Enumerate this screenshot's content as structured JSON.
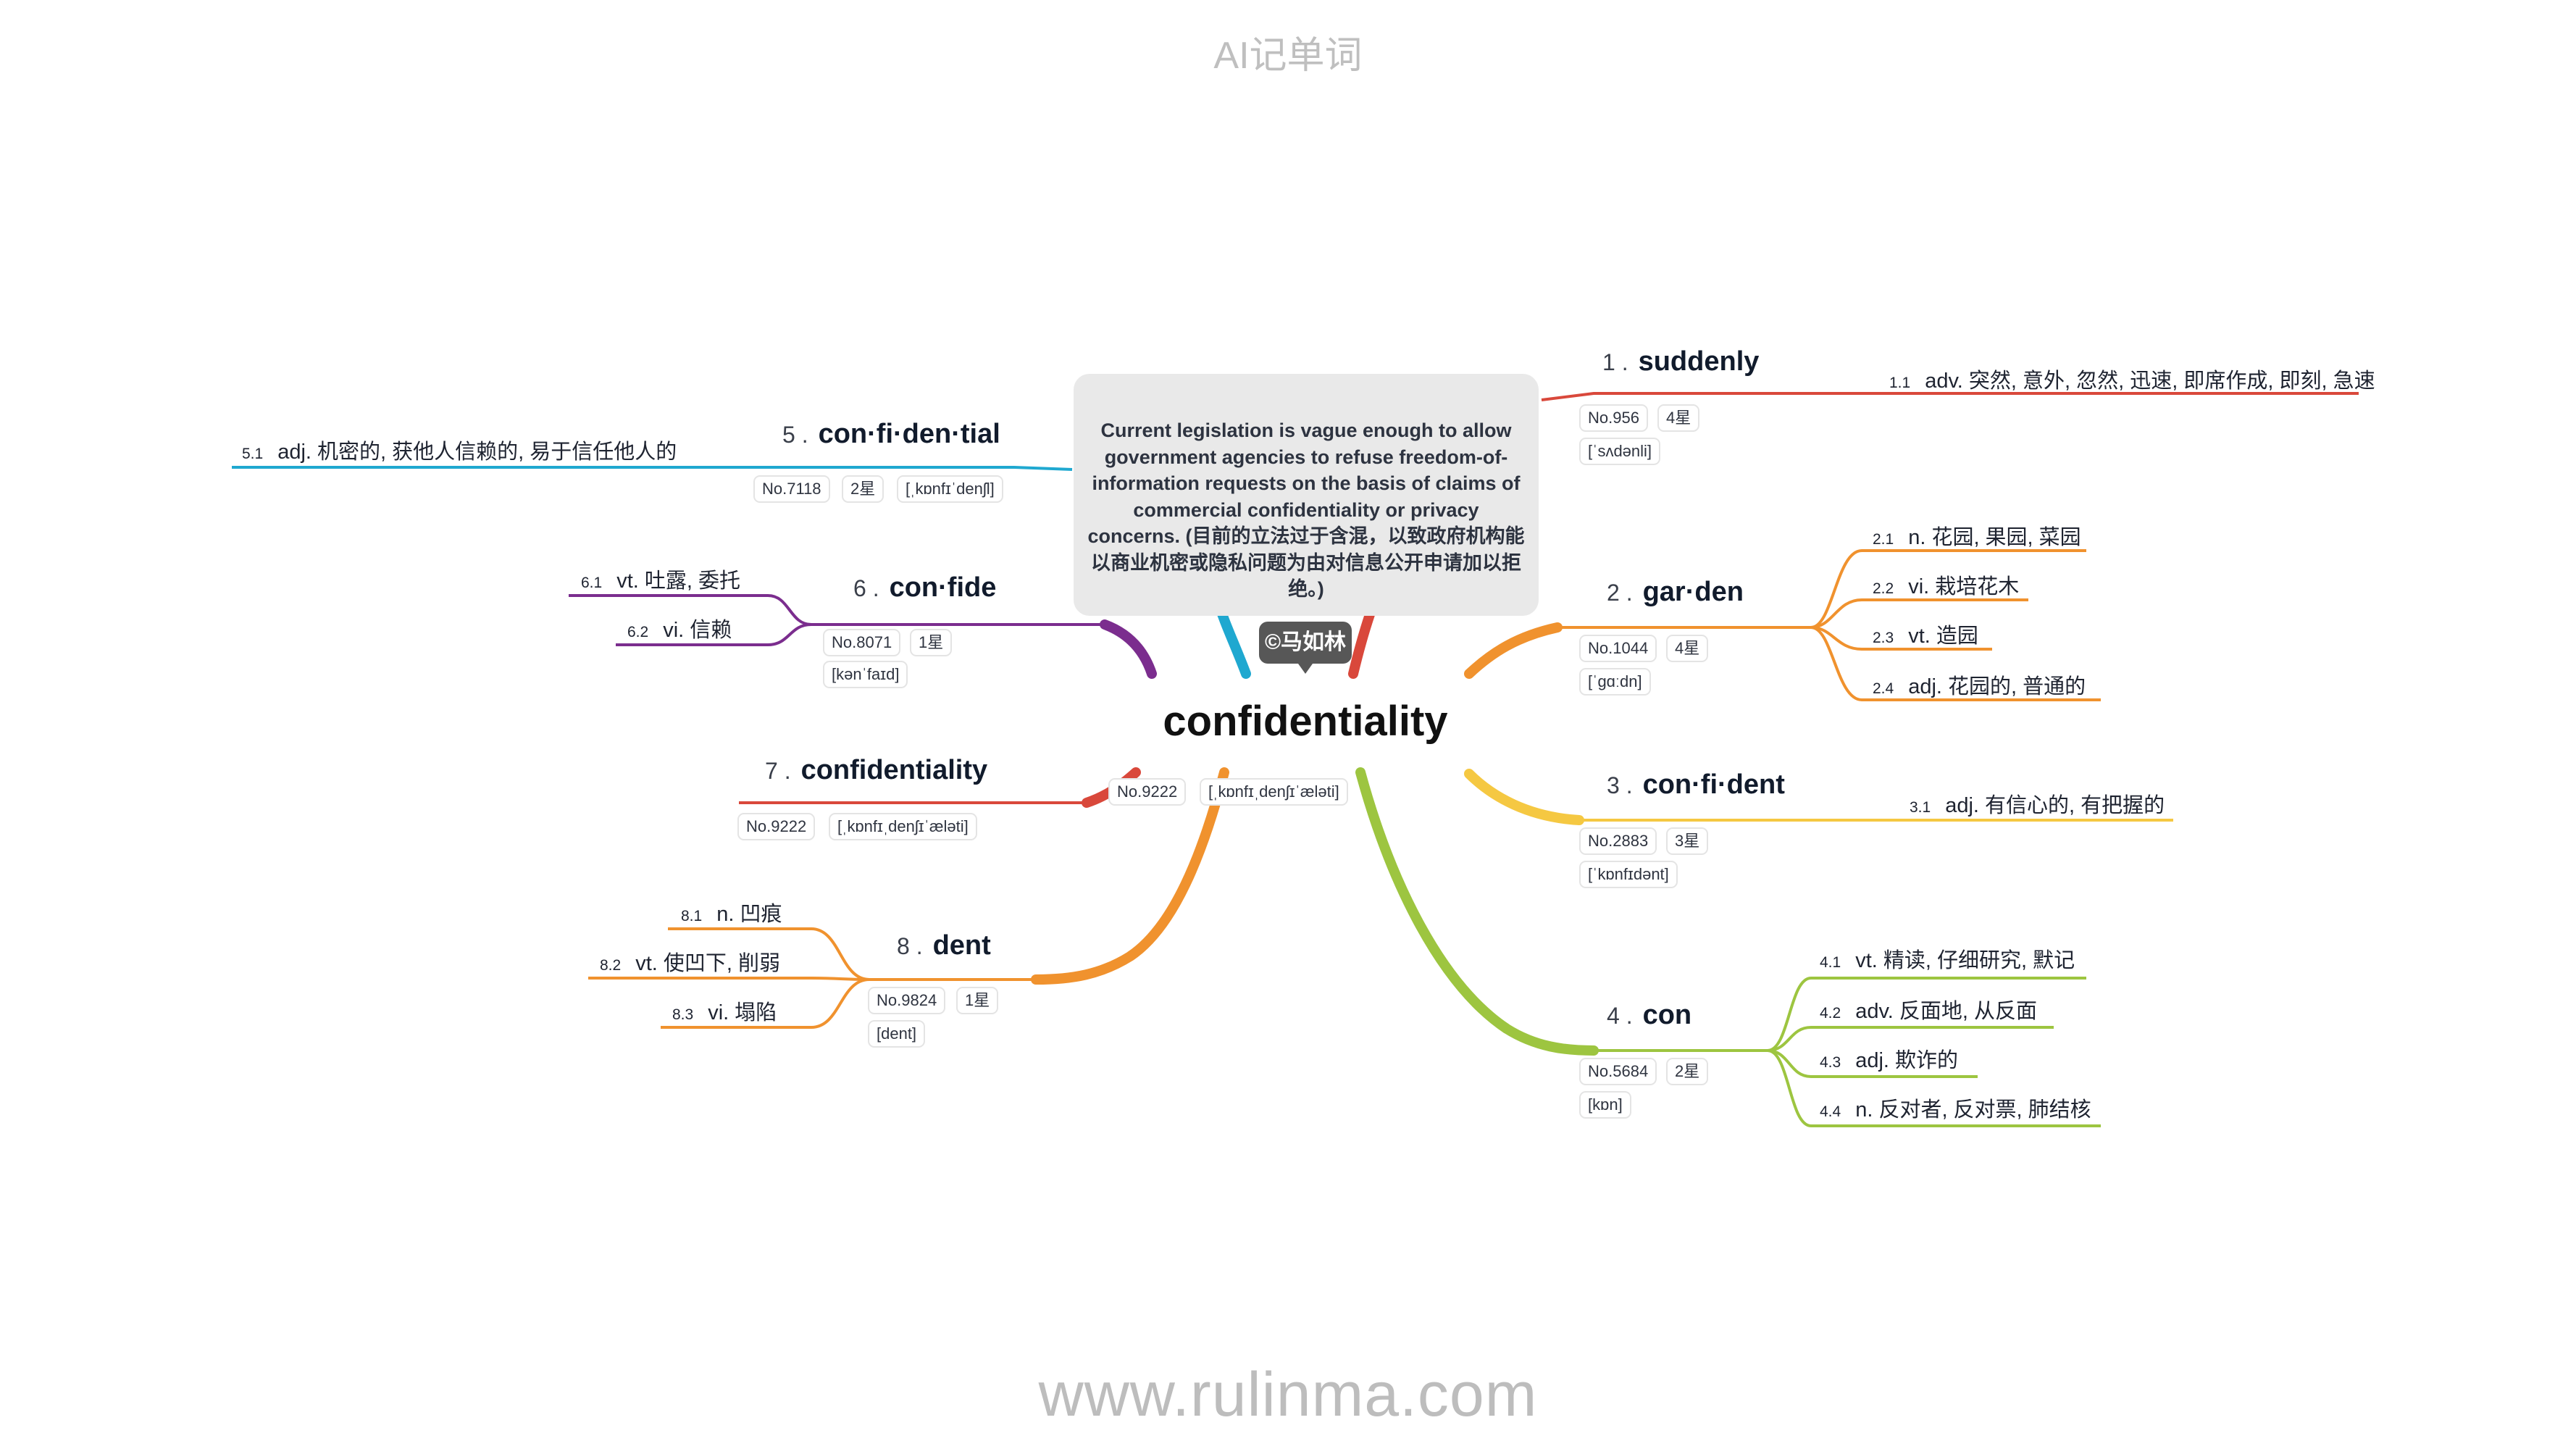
{
  "header": "AI记单词",
  "footer": "www.rulinma.com",
  "note": "Current legislation is vague enough to allow government agencies to refuse freedom-of-information requests on the basis of claims of commercial confidentiality or privacy concerns. (目前的立法过于含混，以致政府机构能以商业机密或隐私问题为由对信息公开申请加以拒绝。)",
  "credit": "©马如林",
  "central": {
    "word": "confidentiality",
    "no": "No.9222",
    "phonetic": "[ˌkɒnfɪˌdenʃɪˈæləti]"
  },
  "colors": {
    "b1": "#d9483b",
    "b2": "#f0922e",
    "b3": "#f5c842",
    "b4": "#9dc540",
    "b5": "#1fa8d0",
    "b6": "#7b2d8e",
    "b7": "#d9483b",
    "b8": "#f0922e"
  },
  "branches": [
    {
      "num": "1 .",
      "word": "suddenly",
      "no": "No.956",
      "stars": "4星",
      "phonetic": "[ˈsʌdənli]",
      "defs": [
        {
          "n": "1.1",
          "t": "adv. 突然, 意外, 忽然, 迅速, 即席作成, 即刻, 急速"
        }
      ]
    },
    {
      "num": "2 .",
      "word": "gar·den",
      "no": "No.1044",
      "stars": "4星",
      "phonetic": "[ˈɡɑːdn]",
      "defs": [
        {
          "n": "2.1",
          "t": "n. 花园, 果园, 菜园"
        },
        {
          "n": "2.2",
          "t": "vi. 栽培花木"
        },
        {
          "n": "2.3",
          "t": "vt. 造园"
        },
        {
          "n": "2.4",
          "t": "adj. 花园的, 普通的"
        }
      ]
    },
    {
      "num": "3 .",
      "word": "con·fi·dent",
      "no": "No.2883",
      "stars": "3星",
      "phonetic": "[ˈkɒnfɪdənt]",
      "defs": [
        {
          "n": "3.1",
          "t": "adj. 有信心的, 有把握的"
        }
      ]
    },
    {
      "num": "4 .",
      "word": "con",
      "no": "No.5684",
      "stars": "2星",
      "phonetic": "[kɒn]",
      "defs": [
        {
          "n": "4.1",
          "t": "vt. 精读, 仔细研究, 默记"
        },
        {
          "n": "4.2",
          "t": "adv. 反面地, 从反面"
        },
        {
          "n": "4.3",
          "t": "adj. 欺诈的"
        },
        {
          "n": "4.4",
          "t": "n. 反对者, 反对票, 肺结核"
        }
      ]
    },
    {
      "num": "5 .",
      "word": "con·fi·den·tial",
      "no": "No.7118",
      "stars": "2星",
      "phonetic": "[ˌkɒnfɪˈdenʃl]",
      "defs": [
        {
          "n": "5.1",
          "t": "adj. 机密的, 获他人信赖的, 易于信任他人的"
        }
      ]
    },
    {
      "num": "6 .",
      "word": "con·fide",
      "no": "No.8071",
      "stars": "1星",
      "phonetic": "[kənˈfaɪd]",
      "defs": [
        {
          "n": "6.1",
          "t": "vt. 吐露, 委托"
        },
        {
          "n": "6.2",
          "t": "vi. 信赖"
        }
      ]
    },
    {
      "num": "7 .",
      "word": "confidentiality",
      "no": "No.9222",
      "stars": "",
      "phonetic": "[ˌkɒnfɪˌdenʃɪˈæləti]",
      "defs": []
    },
    {
      "num": "8 .",
      "word": "dent",
      "no": "No.9824",
      "stars": "1星",
      "phonetic": "[dent]",
      "defs": [
        {
          "n": "8.1",
          "t": "n. 凹痕"
        },
        {
          "n": "8.2",
          "t": "vt. 使凹下, 削弱"
        },
        {
          "n": "8.3",
          "t": "vi. 塌陷"
        }
      ]
    }
  ]
}
